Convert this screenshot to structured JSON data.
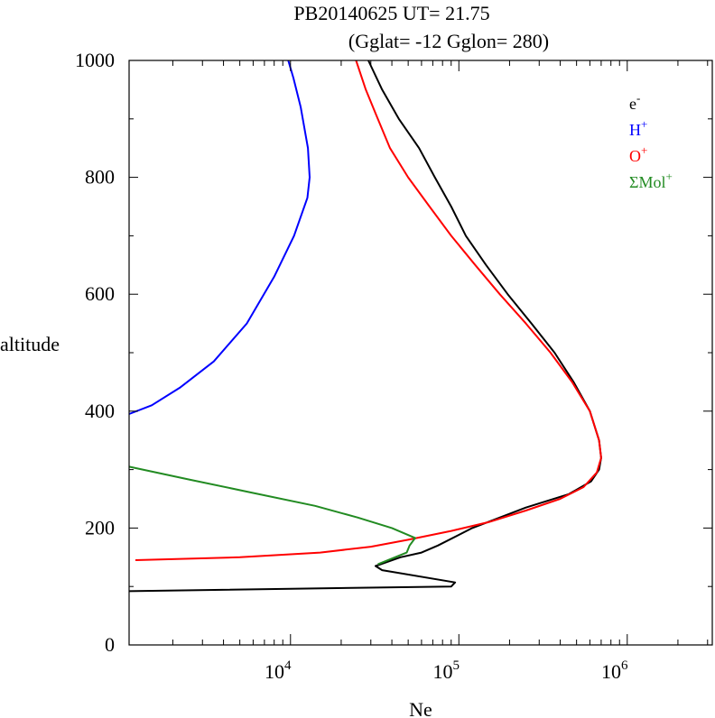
{
  "chart_data": {
    "type": "line",
    "title": "PB20140625   UT=  21.75",
    "subtitle": "(Gglat= -12   Gglon=  280)",
    "xlabel": "Ne",
    "ylabel": "altitude",
    "xscale": "log",
    "xlim": [
      1100,
      3200000
    ],
    "ylim": [
      0,
      1000
    ],
    "x_ticks": [
      {
        "value": 10000,
        "base": "10",
        "exp": "4"
      },
      {
        "value": 100000,
        "base": "10",
        "exp": "5"
      },
      {
        "value": 1000000,
        "base": "10",
        "exp": "6"
      }
    ],
    "y_ticks": [
      {
        "value": 0,
        "label": "0"
      },
      {
        "value": 200,
        "label": "200"
      },
      {
        "value": 400,
        "label": "400"
      },
      {
        "value": 600,
        "label": "600"
      },
      {
        "value": 800,
        "label": "800"
      },
      {
        "value": 1000,
        "label": "1000"
      }
    ],
    "legend_position": "top-right",
    "series": [
      {
        "name": "e-",
        "legend_base": "e",
        "legend_sup": "-",
        "color": "#000000",
        "points": [
          [
            1100,
            92
          ],
          [
            90000,
            100
          ],
          [
            95000,
            107
          ],
          [
            35000,
            128
          ],
          [
            32000,
            135
          ],
          [
            45000,
            150
          ],
          [
            60000,
            158
          ],
          [
            75000,
            170
          ],
          [
            120000,
            200
          ],
          [
            250000,
            235
          ],
          [
            450000,
            258
          ],
          [
            610000,
            280
          ],
          [
            680000,
            300
          ],
          [
            700000,
            320
          ],
          [
            680000,
            350
          ],
          [
            600000,
            400
          ],
          [
            480000,
            450
          ],
          [
            370000,
            500
          ],
          [
            270000,
            550
          ],
          [
            195000,
            600
          ],
          [
            145000,
            650
          ],
          [
            110000,
            700
          ],
          [
            90000,
            750
          ],
          [
            72000,
            800
          ],
          [
            58000,
            850
          ],
          [
            44000,
            900
          ],
          [
            35000,
            950
          ],
          [
            29000,
            1000
          ]
        ]
      },
      {
        "name": "H+",
        "legend_base": "H",
        "legend_sup": "+",
        "color": "#0000ff",
        "points": [
          [
            1100,
            395
          ],
          [
            1500,
            410
          ],
          [
            2200,
            440
          ],
          [
            3500,
            485
          ],
          [
            5500,
            550
          ],
          [
            8000,
            630
          ],
          [
            10500,
            700
          ],
          [
            12600,
            765
          ],
          [
            13000,
            800
          ],
          [
            12700,
            850
          ],
          [
            11500,
            920
          ],
          [
            10400,
            970
          ],
          [
            9700,
            1000
          ]
        ]
      },
      {
        "name": "O+",
        "legend_base": "O",
        "legend_sup": "+",
        "color": "#ff0000",
        "points": [
          [
            1200,
            145
          ],
          [
            5000,
            150
          ],
          [
            15000,
            158
          ],
          [
            30000,
            168
          ],
          [
            50000,
            180
          ],
          [
            90000,
            195
          ],
          [
            150000,
            210
          ],
          [
            250000,
            230
          ],
          [
            400000,
            250
          ],
          [
            550000,
            270
          ],
          [
            660000,
            295
          ],
          [
            700000,
            320
          ],
          [
            680000,
            350
          ],
          [
            600000,
            400
          ],
          [
            470000,
            450
          ],
          [
            350000,
            500
          ],
          [
            250000,
            550
          ],
          [
            175000,
            600
          ],
          [
            125000,
            650
          ],
          [
            90000,
            700
          ],
          [
            67000,
            750
          ],
          [
            50000,
            800
          ],
          [
            39000,
            850
          ],
          [
            33000,
            900
          ],
          [
            28000,
            950
          ],
          [
            24500,
            1000
          ]
        ]
      },
      {
        "name": "ΣMol+",
        "legend_base": "ΣMol",
        "legend_sup": "+",
        "color": "#228b22",
        "points": [
          [
            1100,
            305
          ],
          [
            2500,
            283
          ],
          [
            6000,
            260
          ],
          [
            14000,
            238
          ],
          [
            25000,
            218
          ],
          [
            40000,
            200
          ],
          [
            55000,
            183
          ],
          [
            51000,
            170
          ],
          [
            49000,
            158
          ],
          [
            33000,
            138
          ]
        ]
      }
    ]
  }
}
